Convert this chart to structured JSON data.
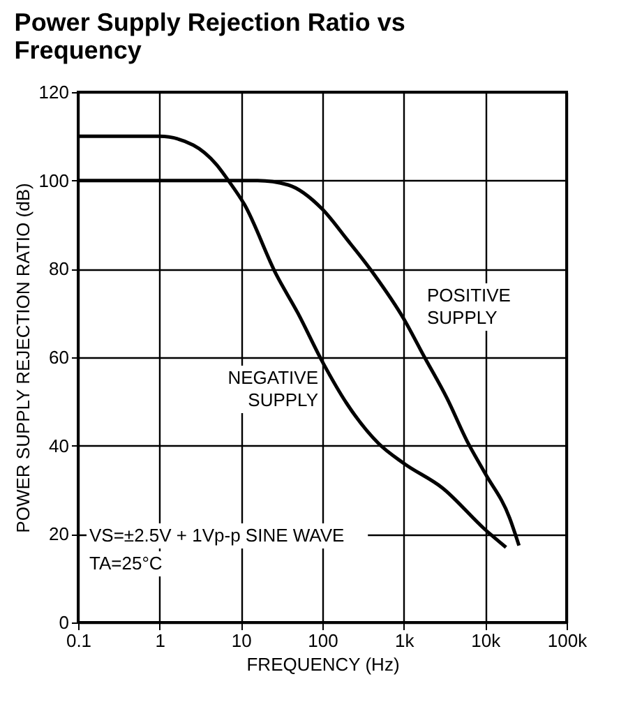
{
  "chart_data": {
    "type": "line",
    "title": "Power Supply Rejection Ratio vs Frequency",
    "xlabel": "FREQUENCY (Hz)",
    "ylabel": "POWER SUPPLY REJECTION RATIO (dB)",
    "log": "x",
    "grid": true,
    "marker": "none",
    "line_style": "solid",
    "xlim": [
      0.1,
      100000
    ],
    "xticks": [
      0.1,
      1,
      10,
      100,
      {
        "value": 1000,
        "label": "1k"
      },
      {
        "value": 10000,
        "label": "10k"
      },
      {
        "value": 100000,
        "label": "100k"
      }
    ],
    "ylim": [
      0,
      120
    ],
    "yticks": [
      0,
      20,
      40,
      60,
      80,
      100,
      120
    ],
    "series": [
      {
        "color": "#000000",
        "x": [
          0.1,
          1,
          2.6,
          5,
          7,
          11,
          27,
          50,
          100,
          200,
          490,
          1000,
          3000,
          10000,
          18000
        ],
        "values": [
          110,
          110,
          108,
          103.6,
          100,
          94.6,
          78.8,
          70,
          59,
          49.5,
          40.5,
          36,
          30.4,
          21,
          17
        ]
      },
      {
        "color": "#000000",
        "x": [
          0.1,
          16,
          38,
          100,
          200,
          430,
          1000,
          1800,
          3400,
          6000,
          10000,
          20000,
          26000
        ],
        "values": [
          100,
          100,
          99,
          93.5,
          86.7,
          78.8,
          68.7,
          60,
          50.7,
          41,
          33.7,
          23.6,
          17.4
        ]
      }
    ],
    "annotations": [
      "NEGATIVE SUPPLY",
      "POSITIVE SUPPLY",
      "VS=±2.5V + 1Vp-p SINE WAVE",
      "TA=25°C"
    ]
  }
}
